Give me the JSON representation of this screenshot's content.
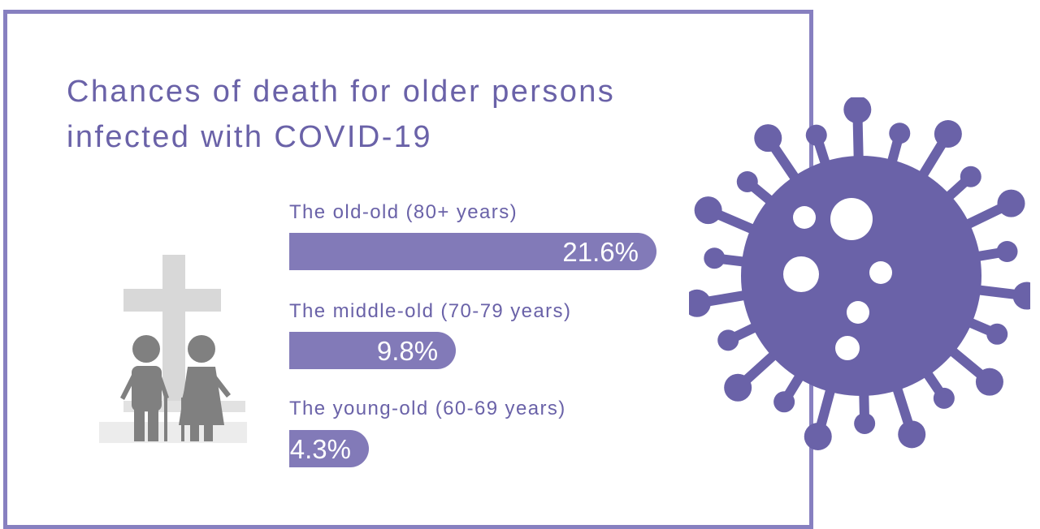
{
  "title_lines": [
    "Chances of death for older persons",
    "infected with COVID-19"
  ],
  "colors": {
    "frame": "#8780c0",
    "title_text": "#6a62a8",
    "bar_fill": "#827ab8",
    "virus": "#6a62a8",
    "people": "#808080",
    "cross": "#d8d8d8",
    "base": "#ececec"
  },
  "icons": [
    "elderly-couple-at-grave-icon",
    "coronavirus-icon"
  ],
  "chart_data": {
    "type": "bar",
    "orientation": "horizontal",
    "title": "Chances of death for older persons infected with COVID-19",
    "categories": [
      "The old-old (80+ years)",
      "The middle-old (70-79 years)",
      "The young-old (60-69 years)"
    ],
    "values": [
      21.6,
      9.8,
      4.3
    ],
    "value_labels": [
      "21.6%",
      "9.8%",
      "4.3%"
    ],
    "unit": "%",
    "xlim": [
      0,
      21.6
    ],
    "grid": false,
    "legend": "none"
  }
}
